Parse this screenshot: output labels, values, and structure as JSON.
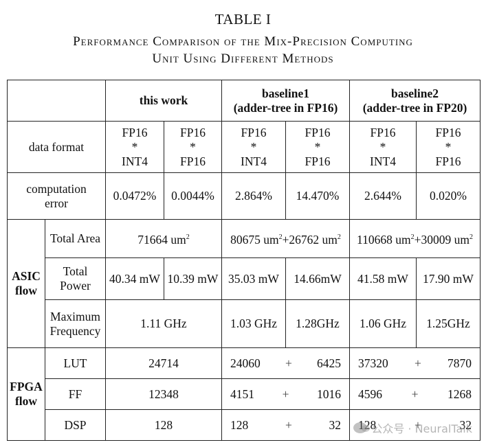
{
  "caption": {
    "label": "TABLE I",
    "title_line1": "Performance Comparison of the Mix-Precision Computing",
    "title_line2": "Unit Using Different Methods"
  },
  "header": {
    "this_work": "this work",
    "baseline1_line1": "baseline1",
    "baseline1_line2": "(adder-tree in FP16)",
    "baseline2_line1": "baseline2",
    "baseline2_line2": "(adder-tree in FP20)"
  },
  "rows": {
    "data_format": {
      "label": "data format",
      "cells": [
        [
          "FP16",
          "*",
          "INT4"
        ],
        [
          "FP16",
          "*",
          "FP16"
        ],
        [
          "FP16",
          "*",
          "INT4"
        ],
        [
          "FP16",
          "*",
          "FP16"
        ],
        [
          "FP16",
          "*",
          "INT4"
        ],
        [
          "FP16",
          "*",
          "FP16"
        ]
      ]
    },
    "computation_error": {
      "label_line1": "computation",
      "label_line2": "error",
      "values": [
        "0.0472%",
        "0.0044%",
        "2.864%",
        "14.470%",
        "2.644%",
        "0.020%"
      ]
    }
  },
  "asic": {
    "group_line1": "ASIC",
    "group_line2": "flow",
    "total_area": {
      "label": "Total Area",
      "this_work": "71664 um",
      "baseline1": "80675 um",
      "baseline1_extra": "+26762 um",
      "baseline2": "110668 um",
      "baseline2_extra": "+30009 um",
      "unit_sup": "2"
    },
    "total_power": {
      "label_line1": "Total",
      "label_line2": "Power",
      "values": [
        "40.34 mW",
        "10.39 mW",
        "35.03 mW",
        "14.66mW",
        "41.58 mW",
        "17.90 mW"
      ]
    },
    "max_frequency": {
      "label_line1": "Maximum",
      "label_line2": "Frequency",
      "this_work": "1.11 GHz",
      "values": [
        "1.03 GHz",
        "1.28GHz",
        "1.06 GHz",
        "1.25GHz"
      ]
    }
  },
  "fpga": {
    "group_line1": "FPGA",
    "group_line2": "flow",
    "plus": "+",
    "lut": {
      "label": "LUT",
      "this_work": "24714",
      "b1": [
        "24060",
        "6425"
      ],
      "b2": [
        "37320",
        "7870"
      ]
    },
    "ff": {
      "label": "FF",
      "this_work": "12348",
      "b1": [
        "4151",
        "1016"
      ],
      "b2": [
        "4596",
        "1268"
      ]
    },
    "dsp": {
      "label": "DSP",
      "this_work": "128",
      "b1": [
        "128",
        "32"
      ],
      "b2": [
        "128",
        "32"
      ]
    }
  },
  "watermark": {
    "text": "公众号 · NeuralTalk",
    "icon": "wechat-icon"
  }
}
